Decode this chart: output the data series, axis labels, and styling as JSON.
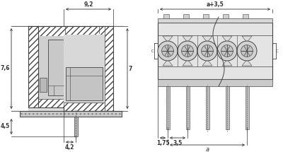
{
  "bg_color": "#ffffff",
  "lc": "#444444",
  "dim_color": "#333333",
  "gray_hatch": "#888888",
  "gray_fill": "#d4d4d4",
  "gray_mid": "#c0c0c0",
  "gray_dark": "#a8a8a8",
  "gray_light": "#e0e0e0",
  "fig_width": 4.0,
  "fig_height": 2.15,
  "dpi": 100,
  "dim_9_2": "9,2",
  "dim_7_6": "7,6",
  "dim_7": "7",
  "dim_4_5": "4,5",
  "dim_4_2": "4,2",
  "dim_a35": "a+3,5",
  "dim_175": "1,75",
  "dim_35": "3,5",
  "dim_a": "a"
}
